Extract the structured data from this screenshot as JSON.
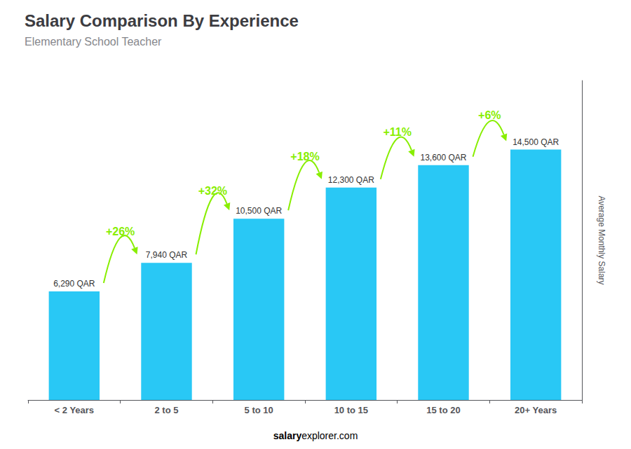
{
  "chart_data": {
    "type": "bar",
    "title": "Salary Comparison By Experience",
    "subtitle": "Elementary School Teacher",
    "categories": [
      "< 2 Years",
      "2 to 5",
      "5 to 10",
      "10 to 15",
      "15 to 20",
      "20+ Years"
    ],
    "values": [
      6290,
      7940,
      10500,
      12300,
      13600,
      14500
    ],
    "value_labels": [
      "6,290 QAR",
      "7,940 QAR",
      "10,500 QAR",
      "12,300 QAR",
      "13,600 QAR",
      "14,500 QAR"
    ],
    "data_labels": true,
    "color": "#29c8f5",
    "ylabel": "Average Monthly Salary",
    "ylim": [
      0,
      18500
    ],
    "grid": false,
    "tick_labels": "x",
    "annotations": [
      {
        "text": "+26%",
        "from": "< 2 Years",
        "to": "2 to 5",
        "color": "#88ee00"
      },
      {
        "text": "+32%",
        "from": "2 to 5",
        "to": "5 to 10",
        "color": "#88ee00"
      },
      {
        "text": "+18%",
        "from": "5 to 10",
        "to": "10 to 15",
        "color": "#88ee00"
      },
      {
        "text": "+11%",
        "from": "10 to 15",
        "to": "15 to 20",
        "color": "#88ee00"
      },
      {
        "text": "+6%",
        "from": "15 to 20",
        "to": "20+ Years",
        "color": "#88ee00"
      }
    ],
    "footer": [
      {
        "text": "salary",
        "color": "#00d0ff"
      },
      {
        "text": "explorer.com"
      }
    ]
  }
}
